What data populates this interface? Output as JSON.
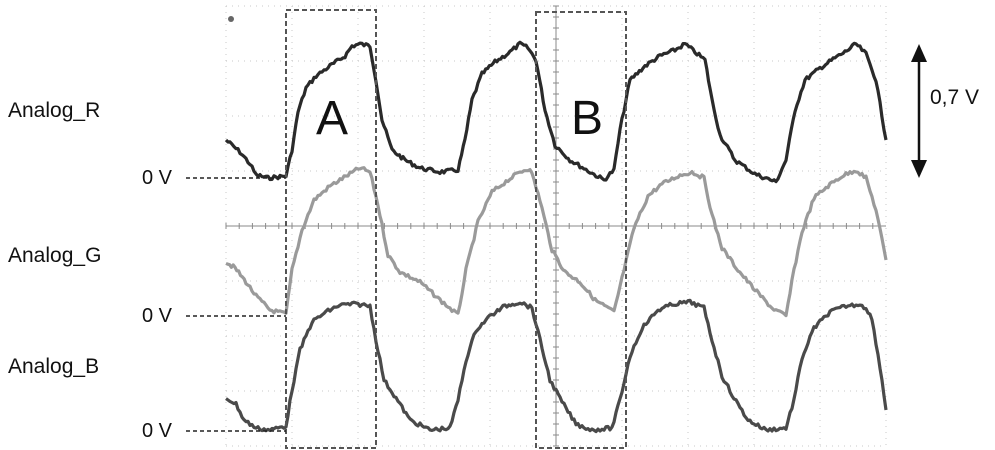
{
  "channels": [
    {
      "name": "Analog_R",
      "zero_label": "0 V",
      "color": "#2a2a2a"
    },
    {
      "name": "Analog_G",
      "zero_label": "0 V",
      "color": "#9a9a9a"
    },
    {
      "name": "Analog_B",
      "zero_label": "0 V",
      "color": "#4a4a4a"
    }
  ],
  "regions": [
    {
      "label": "A"
    },
    {
      "label": "B"
    }
  ],
  "scale": {
    "label": "0,7 V"
  },
  "colors": {
    "background": "#ffffff",
    "grid": "#c8c8c8",
    "box": "#555555",
    "text": "#111111"
  }
}
